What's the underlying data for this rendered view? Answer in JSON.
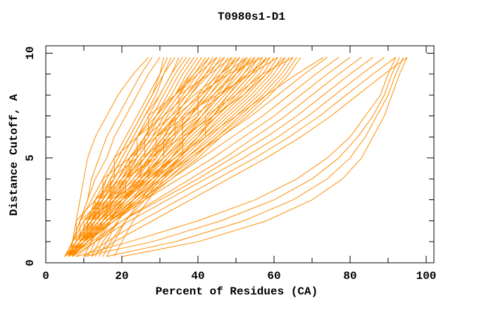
{
  "chart_data": {
    "type": "line",
    "title": "T0980s1-D1",
    "xlabel": "Percent of Residues (CA)",
    "ylabel": "Distance Cutoff, A",
    "xlim": [
      0,
      102
    ],
    "ylim": [
      0,
      10.35
    ],
    "x_major_ticks": [
      0,
      20,
      40,
      60,
      80,
      100
    ],
    "x_minor_ticks": [
      10,
      30,
      50,
      70,
      90
    ],
    "y_major_ticks": [
      0,
      5,
      10
    ],
    "y_minor_ticks": [
      1,
      2,
      3,
      4,
      6,
      7,
      8,
      9
    ],
    "grid": false,
    "legend": "none",
    "line_color": "#ff8c00",
    "axis_color": "#000000",
    "cutoff_levels": [
      0.3,
      1,
      2,
      3,
      4,
      5,
      6,
      7,
      8,
      9,
      9.8
    ],
    "curves": [
      [
        6,
        7,
        8,
        9,
        10,
        11,
        13,
        16,
        19,
        23,
        27
      ],
      [
        6,
        7,
        9,
        11,
        12,
        14,
        16,
        19,
        22,
        25,
        28
      ],
      [
        5,
        7,
        9,
        11,
        13,
        16,
        18,
        21,
        24,
        27,
        30
      ],
      [
        6,
        8,
        11,
        14,
        16,
        19,
        22,
        25,
        28,
        30,
        31
      ],
      [
        6,
        7,
        9,
        12,
        15,
        18,
        21,
        24,
        27,
        30,
        32
      ],
      [
        7,
        9,
        12,
        14,
        17,
        20,
        23,
        26,
        29,
        31,
        33
      ],
      [
        6,
        8,
        11,
        13,
        16,
        19,
        22,
        25,
        28,
        31,
        34
      ],
      [
        6,
        9,
        12,
        15,
        18,
        21,
        24,
        27,
        30,
        33,
        35
      ],
      [
        5,
        7,
        10,
        14,
        17,
        20,
        23,
        26,
        30,
        33,
        36
      ],
      [
        6,
        8,
        11,
        14,
        18,
        21,
        24,
        28,
        31,
        34,
        37
      ],
      [
        7,
        9,
        12,
        16,
        19,
        22,
        26,
        29,
        32,
        35,
        38
      ],
      [
        6,
        8,
        12,
        15,
        19,
        22,
        26,
        29,
        33,
        36,
        39
      ],
      [
        6,
        9,
        13,
        16,
        20,
        23,
        27,
        30,
        34,
        37,
        40
      ],
      [
        5,
        8,
        11,
        15,
        19,
        23,
        26,
        30,
        34,
        38,
        41
      ],
      [
        6,
        9,
        12,
        16,
        20,
        24,
        28,
        31,
        35,
        39,
        42
      ],
      [
        7,
        10,
        13,
        17,
        21,
        25,
        29,
        32,
        36,
        40,
        43
      ],
      [
        6,
        8,
        12,
        16,
        20,
        24,
        28,
        33,
        37,
        41,
        44
      ],
      [
        6,
        9,
        13,
        17,
        21,
        26,
        30,
        34,
        38,
        42,
        45
      ],
      [
        5,
        8,
        12,
        16,
        21,
        25,
        29,
        34,
        38,
        43,
        46
      ],
      [
        6,
        9,
        13,
        18,
        22,
        26,
        31,
        35,
        40,
        44,
        47
      ],
      [
        7,
        10,
        14,
        18,
        23,
        27,
        32,
        36,
        41,
        45,
        48
      ],
      [
        6,
        9,
        14,
        18,
        23,
        28,
        32,
        37,
        42,
        46,
        49
      ],
      [
        6,
        10,
        14,
        19,
        24,
        28,
        33,
        38,
        43,
        47,
        50
      ],
      [
        5,
        9,
        13,
        18,
        23,
        28,
        33,
        38,
        43,
        48,
        51
      ],
      [
        6,
        10,
        15,
        20,
        25,
        30,
        35,
        40,
        44,
        49,
        52
      ],
      [
        7,
        10,
        15,
        20,
        25,
        30,
        35,
        41,
        46,
        50,
        53
      ],
      [
        6,
        9,
        14,
        20,
        25,
        31,
        36,
        41,
        46,
        51,
        54
      ],
      [
        6,
        10,
        15,
        21,
        26,
        31,
        37,
        42,
        47,
        52,
        55
      ],
      [
        5,
        9,
        15,
        20,
        26,
        32,
        37,
        43,
        48,
        53,
        56
      ],
      [
        6,
        10,
        16,
        21,
        27,
        33,
        38,
        44,
        49,
        54,
        57
      ],
      [
        7,
        11,
        16,
        22,
        28,
        33,
        39,
        45,
        50,
        55,
        58
      ],
      [
        6,
        10,
        16,
        22,
        28,
        34,
        40,
        45,
        51,
        56,
        59
      ],
      [
        6,
        11,
        17,
        23,
        29,
        35,
        41,
        46,
        52,
        57,
        60
      ],
      [
        5,
        10,
        16,
        23,
        29,
        35,
        41,
        47,
        53,
        58,
        61
      ],
      [
        6,
        11,
        17,
        23,
        30,
        36,
        42,
        48,
        54,
        59,
        62
      ],
      [
        7,
        11,
        18,
        24,
        30,
        37,
        43,
        49,
        55,
        60,
        63
      ],
      [
        6,
        10,
        17,
        24,
        31,
        37,
        44,
        50,
        56,
        61,
        64
      ],
      [
        6,
        11,
        18,
        25,
        32,
        38,
        45,
        51,
        57,
        62,
        65
      ],
      [
        5,
        10,
        17,
        25,
        32,
        39,
        45,
        52,
        58,
        63,
        66
      ],
      [
        6,
        11,
        18,
        26,
        33,
        40,
        46,
        53,
        59,
        64,
        67
      ],
      [
        6,
        8,
        8,
        13,
        18,
        18,
        24,
        29,
        34,
        39,
        43
      ],
      [
        6,
        9,
        9,
        15,
        15,
        22,
        27,
        27,
        34,
        40,
        45
      ],
      [
        7,
        7,
        12,
        17,
        17,
        24,
        24,
        31,
        37,
        42,
        47
      ],
      [
        6,
        10,
        10,
        16,
        22,
        22,
        29,
        35,
        35,
        43,
        49
      ],
      [
        5,
        8,
        13,
        13,
        20,
        26,
        26,
        33,
        39,
        46,
        51
      ],
      [
        6,
        9,
        14,
        14,
        21,
        28,
        34,
        34,
        41,
        47,
        53
      ],
      [
        7,
        10,
        15,
        21,
        21,
        29,
        29,
        37,
        44,
        50,
        55
      ],
      [
        6,
        11,
        11,
        18,
        25,
        25,
        33,
        40,
        40,
        48,
        57
      ],
      [
        6,
        9,
        16,
        16,
        24,
        31,
        31,
        39,
        46,
        53,
        59
      ],
      [
        5,
        10,
        10,
        19,
        27,
        27,
        36,
        36,
        45,
        54,
        61
      ],
      [
        6,
        12,
        12,
        20,
        28,
        36,
        36,
        44,
        52,
        58,
        63
      ],
      [
        7,
        11,
        17,
        17,
        26,
        34,
        42,
        42,
        50,
        57,
        65
      ],
      [
        10,
        12,
        15,
        18,
        21,
        24,
        28,
        31,
        35,
        38,
        41
      ],
      [
        12,
        14,
        17,
        20,
        24,
        27,
        31,
        34,
        38,
        42,
        45
      ],
      [
        14,
        16,
        19,
        23,
        26,
        30,
        34,
        38,
        42,
        46,
        49
      ],
      [
        16,
        18,
        21,
        25,
        29,
        33,
        37,
        41,
        45,
        49,
        53
      ],
      [
        18,
        20,
        23,
        27,
        31,
        35,
        40,
        44,
        48,
        52,
        56
      ],
      [
        11,
        13,
        17,
        21,
        25,
        29,
        33,
        38,
        42,
        46,
        50
      ],
      [
        13,
        15,
        19,
        23,
        28,
        32,
        37,
        41,
        46,
        50,
        54
      ],
      [
        15,
        17,
        21,
        26,
        30,
        35,
        40,
        44,
        49,
        54,
        58
      ],
      [
        6,
        9,
        14,
        20,
        27,
        34,
        42,
        50,
        58,
        66,
        73
      ],
      [
        6,
        10,
        16,
        23,
        30,
        38,
        46,
        54,
        61,
        68,
        74
      ],
      [
        7,
        11,
        17,
        25,
        33,
        41,
        49,
        57,
        64,
        71,
        77
      ],
      [
        6,
        10,
        18,
        26,
        35,
        44,
        52,
        60,
        67,
        74,
        80
      ],
      [
        8,
        13,
        20,
        29,
        38,
        47,
        55,
        63,
        70,
        77,
        83
      ],
      [
        6,
        12,
        20,
        30,
        40,
        49,
        58,
        66,
        73,
        80,
        86
      ],
      [
        7,
        13,
        22,
        32,
        42,
        52,
        61,
        69,
        76,
        83,
        89
      ],
      [
        10,
        16,
        25,
        35,
        45,
        55,
        64,
        72,
        79,
        86,
        92
      ],
      [
        12,
        18,
        28,
        38,
        48,
        58,
        67,
        75,
        82,
        89,
        95
      ],
      [
        20,
        40,
        58,
        70,
        78,
        83,
        86,
        89,
        91,
        93,
        95
      ],
      [
        16,
        34,
        52,
        65,
        74,
        80,
        84,
        87,
        90,
        92,
        94
      ],
      [
        10,
        28,
        46,
        60,
        70,
        77,
        82,
        86,
        89,
        91,
        93
      ],
      [
        8,
        22,
        40,
        55,
        66,
        74,
        80,
        84,
        88,
        90,
        92
      ]
    ]
  }
}
